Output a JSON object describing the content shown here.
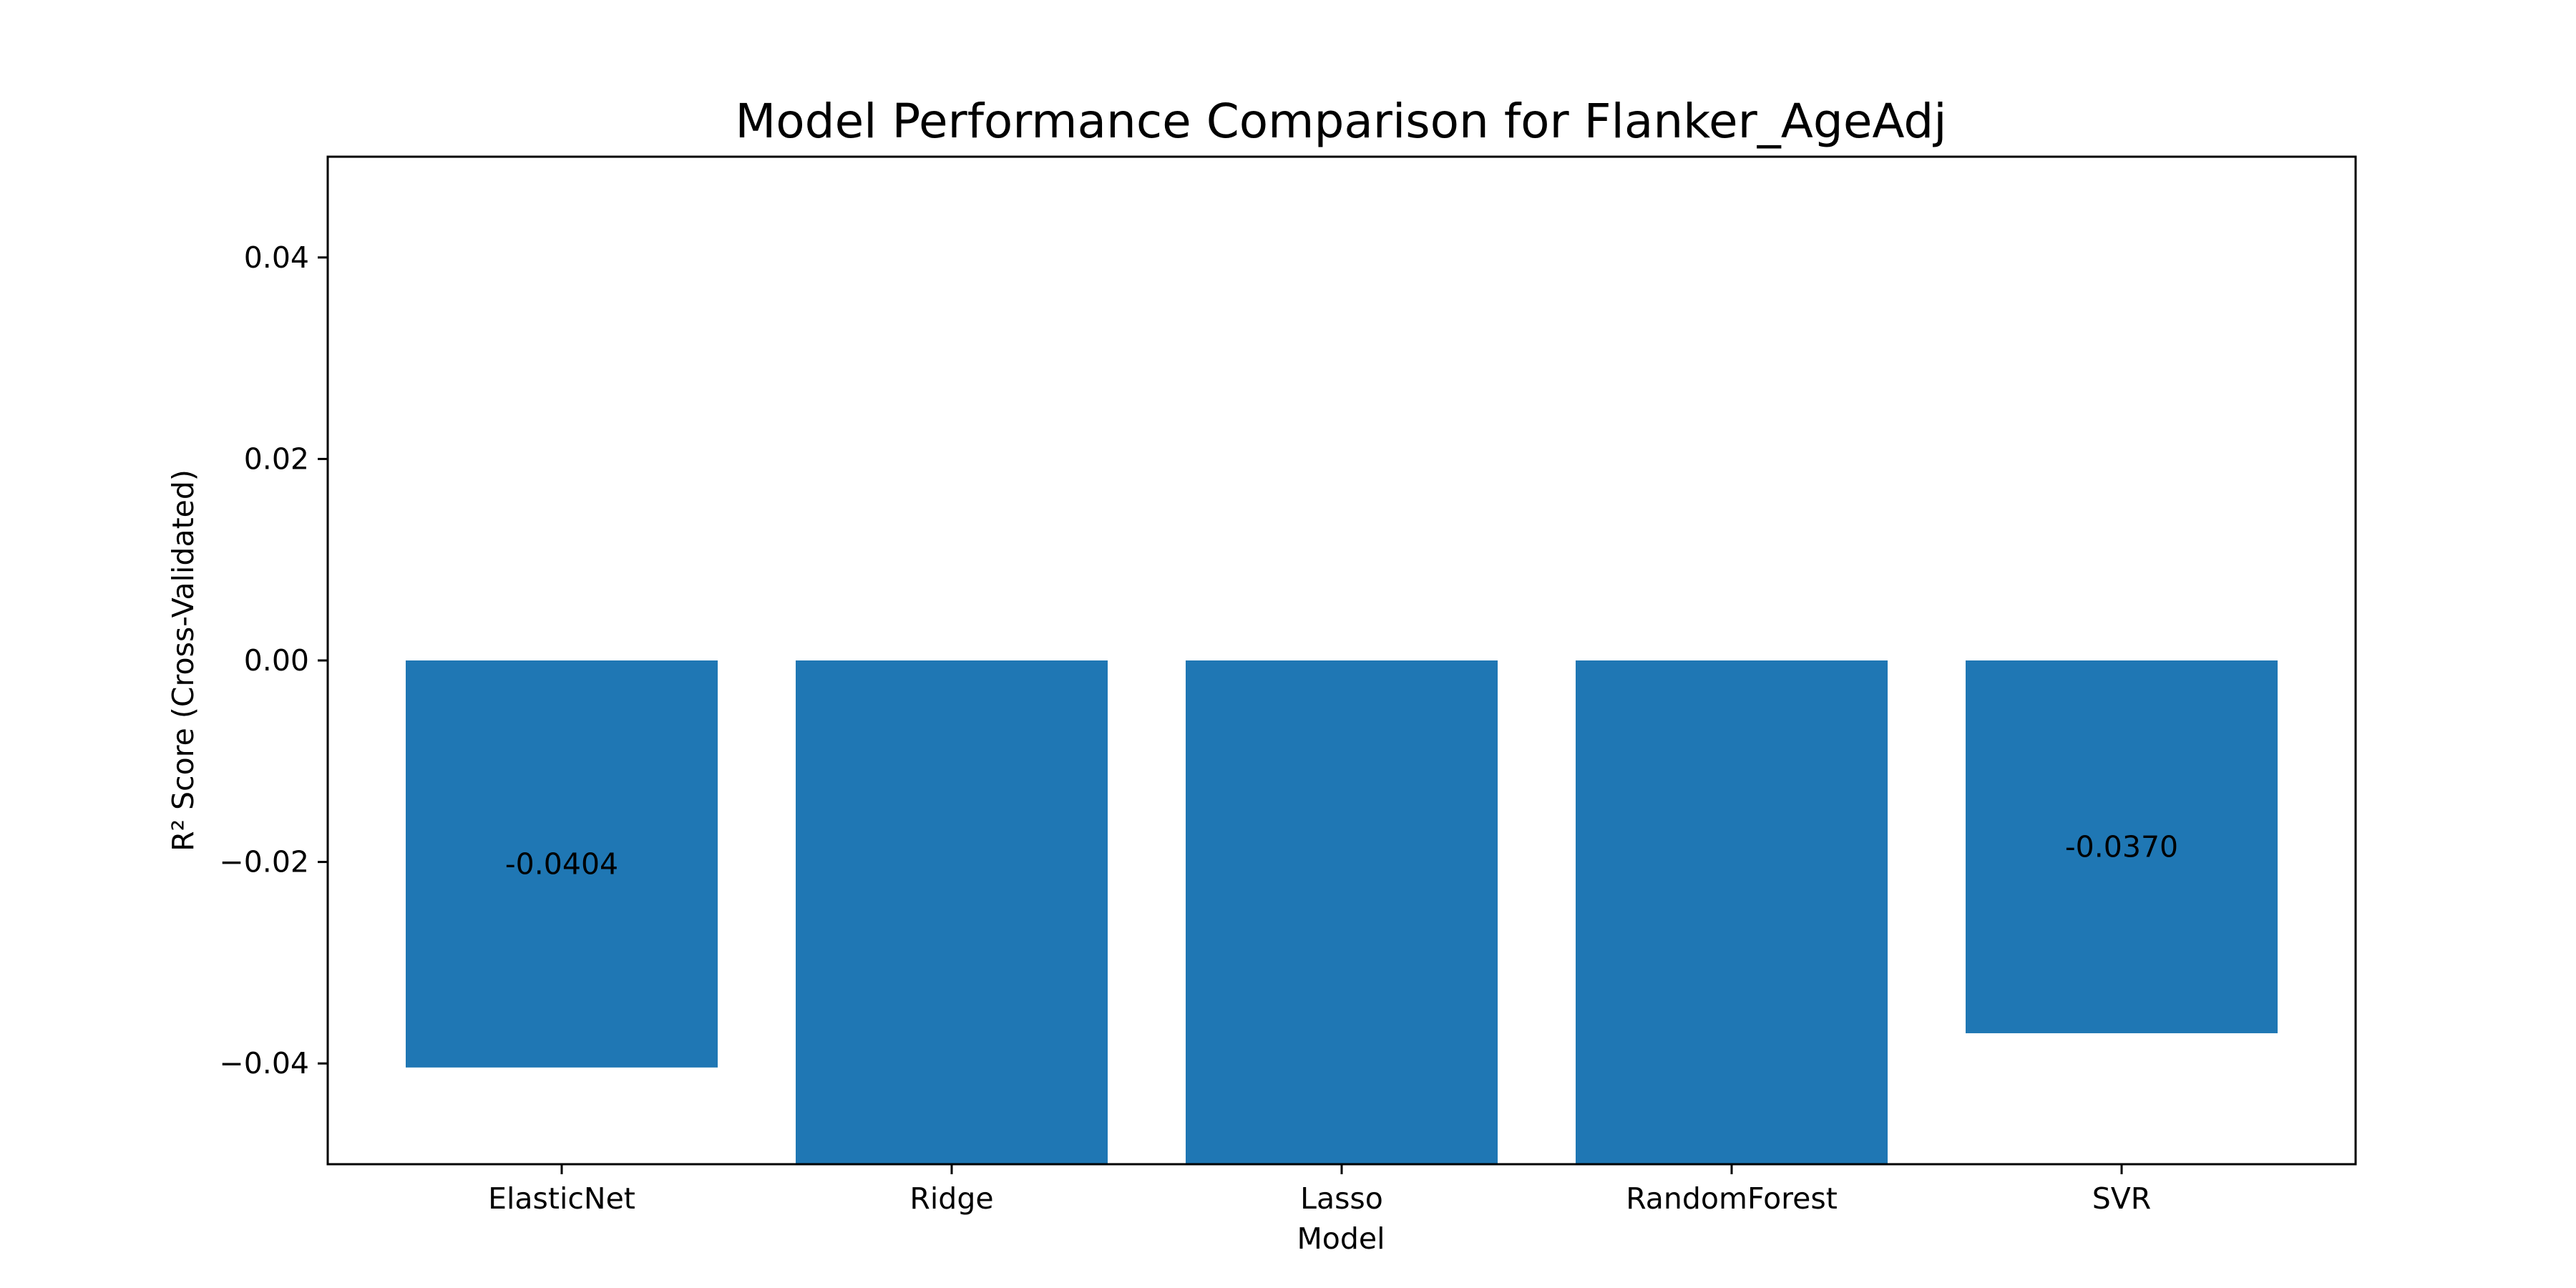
{
  "chart_data": {
    "type": "bar",
    "title": "Model Performance Comparison for Flanker_AgeAdj",
    "xlabel": "Model",
    "ylabel": "R² Score (Cross-Validated)",
    "categories": [
      "ElasticNet",
      "Ridge",
      "Lasso",
      "RandomForest",
      "SVR"
    ],
    "values": [
      -0.0404,
      -0.05,
      -0.05,
      -0.05,
      -0.037
    ],
    "data_labels": [
      "-0.0404",
      "",
      "",
      "",
      "-0.0370"
    ],
    "ylim": [
      -0.05,
      0.05
    ],
    "yticks": [
      0.04,
      0.02,
      0.0,
      -0.02,
      -0.04
    ],
    "ytick_labels": [
      "0.04",
      "0.02",
      "0.00",
      "−0.02",
      "−0.04"
    ],
    "grid": false,
    "bar_color": "#1f77b4"
  }
}
